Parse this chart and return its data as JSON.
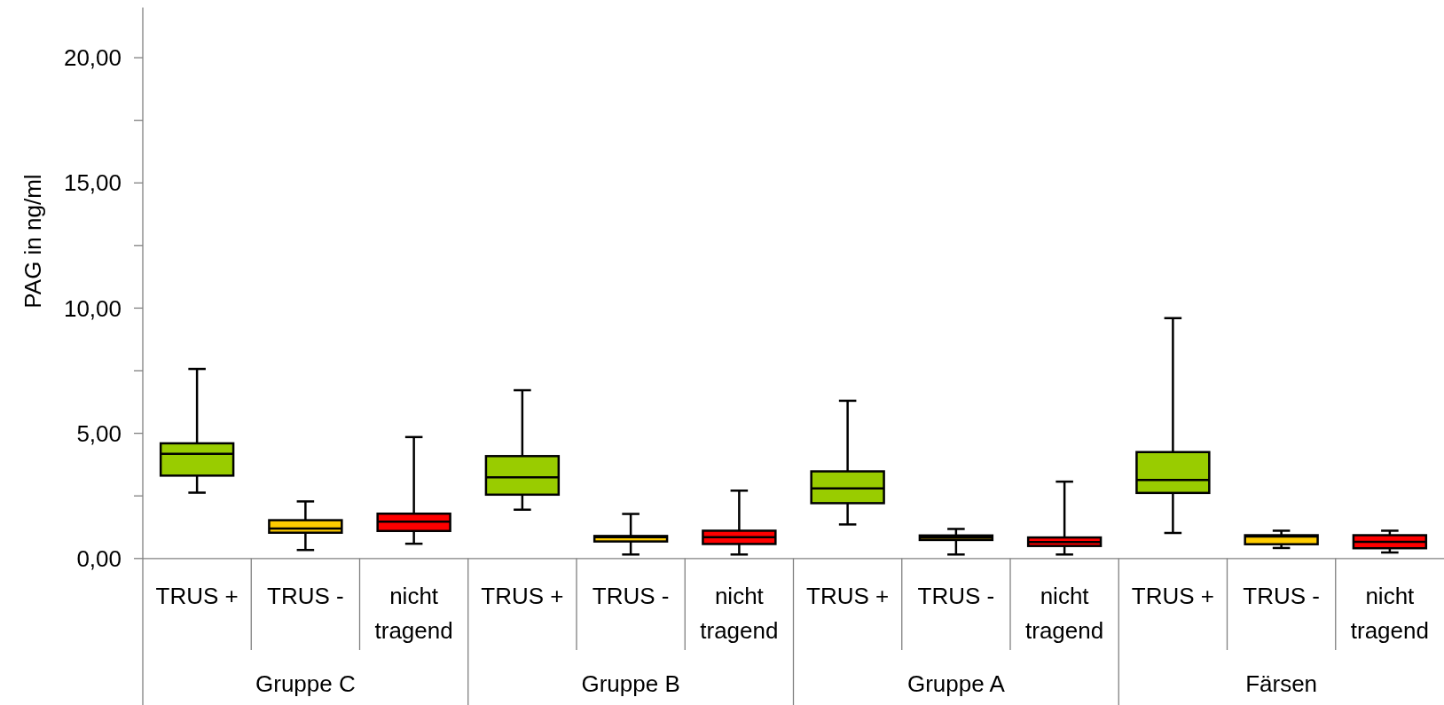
{
  "chart_data": {
    "type": "box",
    "ylabel": "PAG in ng/ml",
    "categories": [
      "TRUS +",
      "TRUS -",
      "nicht tragend",
      "TRUS +",
      "TRUS -",
      "nicht tragend",
      "TRUS +",
      "TRUS -",
      "nicht tragend",
      "TRUS +",
      "TRUS -",
      "nicht tragend"
    ],
    "boxes": [
      {
        "low": 2.63,
        "q1": 3.31,
        "median": 4.18,
        "q3": 4.6,
        "high": 7.57
      },
      {
        "low": 0.34,
        "q1": 1.03,
        "median": 1.2,
        "q3": 1.53,
        "high": 2.28
      },
      {
        "low": 0.59,
        "q1": 1.1,
        "median": 1.47,
        "q3": 1.79,
        "high": 4.85
      },
      {
        "low": 1.95,
        "q1": 2.55,
        "median": 3.24,
        "q3": 4.09,
        "high": 6.72
      },
      {
        "low": 0.16,
        "q1": 0.68,
        "median": 0.85,
        "q3": 0.9,
        "high": 1.78
      },
      {
        "low": 0.16,
        "q1": 0.58,
        "median": 0.85,
        "q3": 1.11,
        "high": 2.71
      },
      {
        "low": 1.36,
        "q1": 2.21,
        "median": 2.8,
        "q3": 3.48,
        "high": 6.3
      },
      {
        "low": 0.16,
        "q1": 0.74,
        "median": 0.83,
        "q3": 0.92,
        "high": 1.18
      },
      {
        "low": 0.16,
        "q1": 0.5,
        "median": 0.66,
        "q3": 0.84,
        "high": 3.07
      },
      {
        "low": 1.02,
        "q1": 2.62,
        "median": 3.14,
        "q3": 4.25,
        "high": 9.6
      },
      {
        "low": 0.42,
        "q1": 0.57,
        "median": 0.88,
        "q3": 0.93,
        "high": 1.11
      },
      {
        "low": 0.24,
        "q1": 0.41,
        "median": 0.67,
        "q3": 0.93,
        "high": 1.11
      }
    ],
    "colors": [
      "#99cc00",
      "#ffcc00",
      "#ff0000",
      "#99cc00",
      "#ffcc00",
      "#ff0000",
      "#99cc00",
      "#ffcc00",
      "#ff0000",
      "#99cc00",
      "#ffcc00",
      "#ff0000"
    ],
    "ylim": [
      0,
      22
    ],
    "yticks": [
      {
        "value": 0,
        "label": "0,00"
      },
      {
        "value": 2.5,
        "label": null
      },
      {
        "value": 5,
        "label": "5,00"
      },
      {
        "value": 7.5,
        "label": null
      },
      {
        "value": 10,
        "label": "10,00"
      },
      {
        "value": 12.5,
        "label": null
      },
      {
        "value": 15,
        "label": "15,00"
      },
      {
        "value": 17.5,
        "label": null
      },
      {
        "value": 20,
        "label": "20,00"
      }
    ],
    "annotations": [
      "Gruppe C",
      "Gruppe B",
      "Gruppe A",
      "Färsen"
    ]
  }
}
